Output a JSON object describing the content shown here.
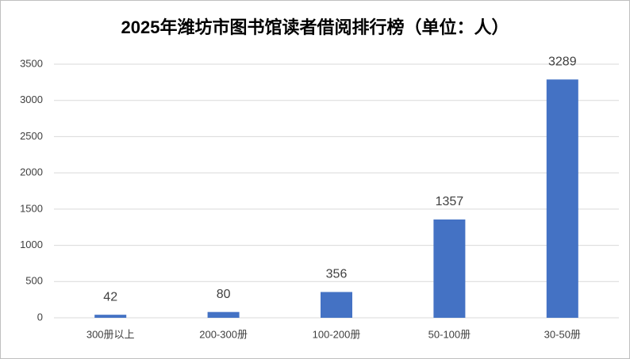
{
  "chart_data": {
    "type": "bar",
    "title": "2025年潍坊市图书馆读者借阅排行榜（单位：人）",
    "categories": [
      "300册以上",
      "200-300册",
      "100-200册",
      "50-100册",
      "30-50册"
    ],
    "values": [
      42,
      80,
      356,
      1357,
      3289
    ],
    "color": "#4472c4",
    "ylim": [
      0,
      3500
    ],
    "yticks": [
      0,
      500,
      1000,
      1500,
      2000,
      2500,
      3000,
      3500
    ],
    "grid": true
  }
}
